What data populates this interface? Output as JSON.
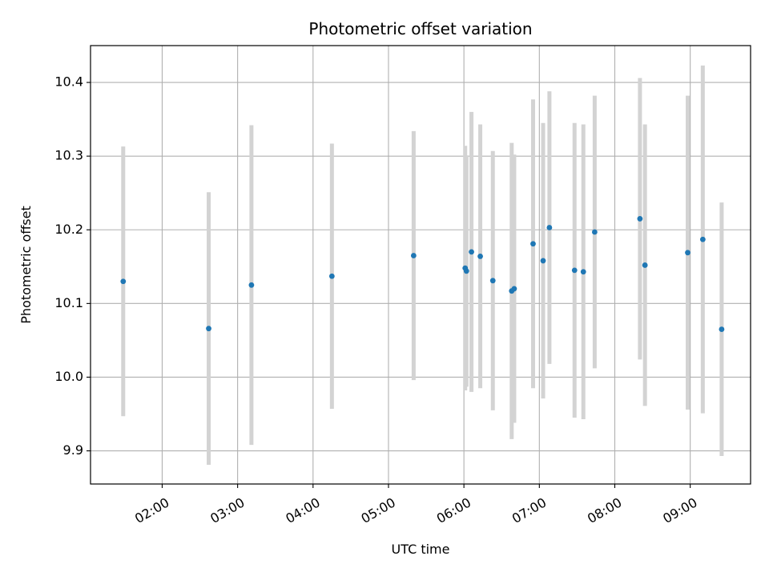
{
  "chart_data": {
    "type": "scatter",
    "title": "Photometric offset variation",
    "xlabel": "UTC time",
    "ylabel": "Photometric offset",
    "x_ticks": [
      "02:00",
      "03:00",
      "04:00",
      "05:00",
      "06:00",
      "07:00",
      "08:00",
      "09:00"
    ],
    "y_ticks": [
      "9.9",
      "10.0",
      "10.1",
      "10.2",
      "10.3",
      "10.4"
    ],
    "xlim": [
      "01:03",
      "09:48"
    ],
    "ylim": [
      9.855,
      10.45
    ],
    "grid": true,
    "legend": "none",
    "colors": {
      "point": "#1f77b4",
      "errorbar": "#d3d3d3",
      "grid": "#b0b0b0"
    },
    "series": [
      {
        "points": [
          {
            "x": "01:29",
            "y": 10.13,
            "err": 0.183
          },
          {
            "x": "02:37",
            "y": 10.066,
            "err": 0.185
          },
          {
            "x": "03:11",
            "y": 10.125,
            "err": 0.217
          },
          {
            "x": "04:15",
            "y": 10.137,
            "err": 0.18
          },
          {
            "x": "05:20",
            "y": 10.165,
            "err": 0.169
          },
          {
            "x": "06:01",
            "y": 10.148,
            "err": 0.166
          },
          {
            "x": "06:02",
            "y": 10.144,
            "err": 0.157
          },
          {
            "x": "06:06",
            "y": 10.17,
            "err": 0.19
          },
          {
            "x": "06:13",
            "y": 10.164,
            "err": 0.179
          },
          {
            "x": "06:23",
            "y": 10.131,
            "err": 0.176
          },
          {
            "x": "06:38",
            "y": 10.117,
            "err": 0.201
          },
          {
            "x": "06:40",
            "y": 10.12,
            "err": 0.182
          },
          {
            "x": "06:55",
            "y": 10.181,
            "err": 0.196
          },
          {
            "x": "07:03",
            "y": 10.158,
            "err": 0.187
          },
          {
            "x": "07:08",
            "y": 10.203,
            "err": 0.185
          },
          {
            "x": "07:28",
            "y": 10.145,
            "err": 0.2
          },
          {
            "x": "07:35",
            "y": 10.143,
            "err": 0.2
          },
          {
            "x": "07:44",
            "y": 10.197,
            "err": 0.185
          },
          {
            "x": "08:20",
            "y": 10.215,
            "err": 0.191
          },
          {
            "x": "08:24",
            "y": 10.152,
            "err": 0.191
          },
          {
            "x": "08:58",
            "y": 10.169,
            "err": 0.213
          },
          {
            "x": "09:10",
            "y": 10.187,
            "err": 0.236
          },
          {
            "x": "09:25",
            "y": 10.065,
            "err": 0.172
          }
        ]
      }
    ]
  }
}
